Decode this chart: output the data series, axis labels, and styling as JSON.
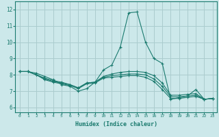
{
  "xlabel": "Humidex (Indice chaleur)",
  "bg_color": "#cce8ea",
  "grid_color": "#aaccce",
  "line_color": "#1a7a6e",
  "x_ticks": [
    0,
    1,
    2,
    3,
    4,
    5,
    6,
    7,
    8,
    9,
    10,
    11,
    12,
    13,
    14,
    15,
    16,
    17,
    18,
    19,
    20,
    21,
    22,
    23
  ],
  "y_ticks": [
    6,
    7,
    8,
    9,
    10,
    11,
    12
  ],
  "xlim": [
    -0.5,
    23.5
  ],
  "ylim": [
    5.7,
    12.5
  ],
  "series": [
    [
      8.2,
      8.2,
      8.1,
      7.9,
      7.7,
      7.4,
      7.3,
      7.0,
      7.15,
      7.55,
      8.3,
      8.6,
      9.7,
      11.8,
      11.85,
      10.0,
      9.0,
      8.7,
      6.5,
      6.6,
      6.7,
      7.1,
      6.5,
      6.55
    ],
    [
      8.2,
      8.2,
      8.0,
      7.8,
      7.65,
      7.55,
      7.4,
      7.2,
      7.5,
      7.55,
      7.9,
      8.05,
      8.15,
      8.2,
      8.2,
      8.15,
      7.95,
      7.5,
      6.75,
      6.75,
      6.8,
      6.85,
      6.5,
      6.55
    ],
    [
      8.2,
      8.2,
      8.0,
      7.75,
      7.6,
      7.5,
      7.4,
      7.2,
      7.5,
      7.55,
      7.85,
      7.95,
      8.0,
      8.05,
      8.05,
      8.0,
      7.75,
      7.3,
      6.65,
      6.65,
      6.7,
      6.75,
      6.5,
      6.55
    ],
    [
      8.2,
      8.2,
      8.0,
      7.7,
      7.55,
      7.45,
      7.35,
      7.15,
      7.45,
      7.5,
      7.8,
      7.85,
      7.9,
      7.95,
      7.95,
      7.85,
      7.6,
      7.1,
      6.55,
      6.55,
      6.62,
      6.68,
      6.5,
      6.55
    ]
  ]
}
